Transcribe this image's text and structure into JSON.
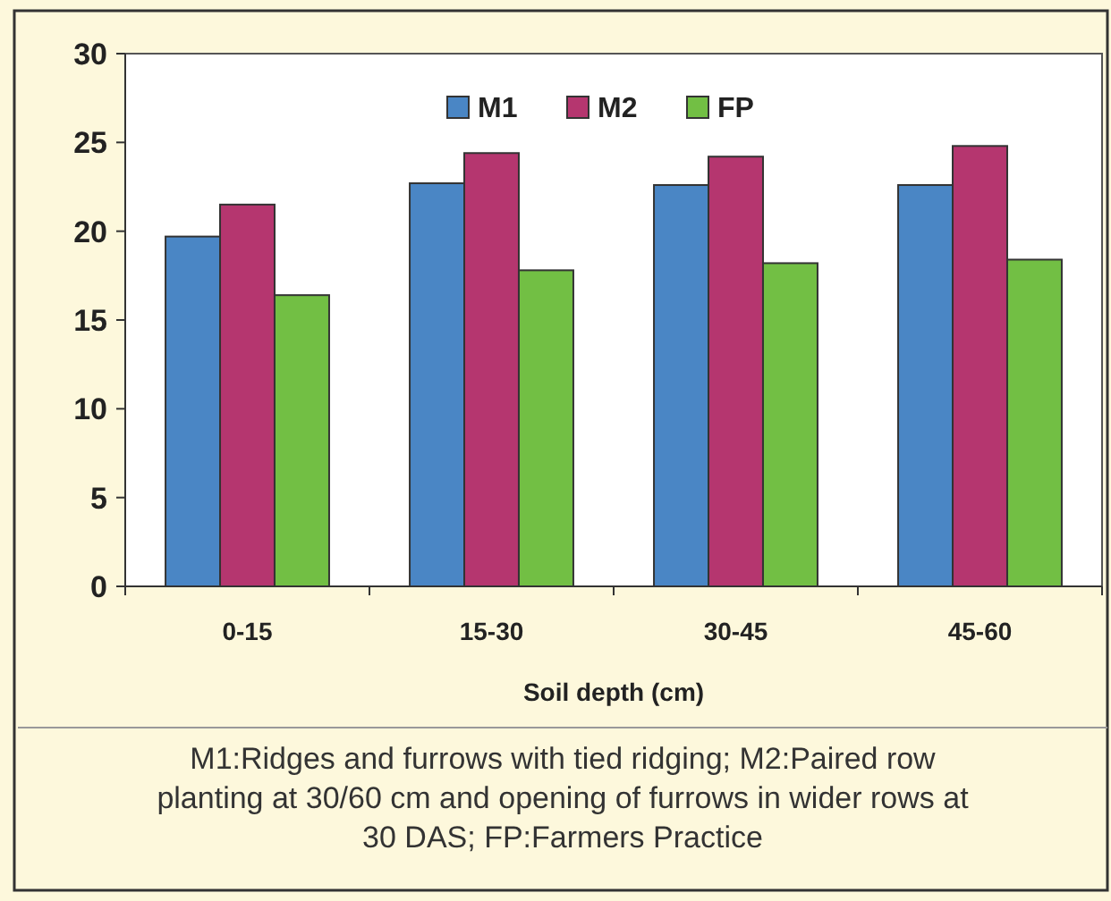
{
  "chart_data": {
    "type": "bar",
    "categories": [
      "0-15",
      "15-30",
      "30-45",
      "45-60"
    ],
    "series": [
      {
        "name": "M1",
        "color": "#4a86c5",
        "values": [
          19.7,
          22.7,
          22.6,
          22.6
        ]
      },
      {
        "name": "M2",
        "color": "#b5366f",
        "values": [
          21.5,
          24.4,
          24.2,
          24.8
        ]
      },
      {
        "name": "FP",
        "color": "#72bf44",
        "values": [
          16.4,
          17.8,
          18.2,
          18.4
        ]
      }
    ],
    "xlabel": "Soil depth (cm)",
    "ylim": [
      0,
      30
    ],
    "yticks": [
      0,
      5,
      10,
      15,
      20,
      25,
      30
    ],
    "legend": "top",
    "grid": false,
    "annotations": [
      "M1:Ridges and furrows with tied ridging; M2:Paired row planting at 30/60 cm and opening of furrows in wider rows at 30 DAS; FP:Farmers Practice"
    ]
  }
}
